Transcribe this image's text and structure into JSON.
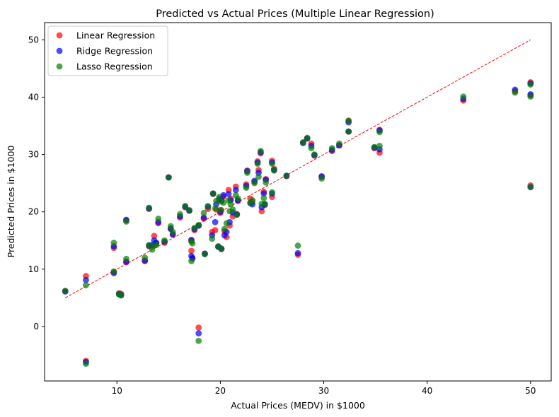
{
  "chart_data": {
    "type": "scatter",
    "title": "Predicted vs Actual Prices (Multiple Linear Regression)",
    "xlabel": "Actual Prices (MEDV) in $1000",
    "ylabel": "Predicted Prices in $1000",
    "xlim": [
      3.0,
      52.0
    ],
    "ylim": [
      -9.5,
      53.0
    ],
    "xticks": [
      10,
      20,
      30,
      40,
      50
    ],
    "yticks": [
      0,
      10,
      20,
      30,
      40,
      50
    ],
    "grid": false,
    "legend_position": "top-left",
    "reference_line": {
      "x": [
        5,
        50
      ],
      "y": [
        5,
        50
      ],
      "color": "#ff0000",
      "style": "dashed"
    },
    "series": [
      {
        "name": "Linear Regression",
        "color": "#ff0000",
        "alpha": 0.7,
        "points": [
          [
            5.0,
            6.2
          ],
          [
            7.0,
            8.8
          ],
          [
            7.0,
            -6.0
          ],
          [
            9.7,
            13.7
          ],
          [
            9.7,
            9.5
          ],
          [
            10.2,
            5.8
          ],
          [
            10.4,
            5.7
          ],
          [
            10.9,
            11.2
          ],
          [
            10.9,
            18.5
          ],
          [
            12.7,
            11.4
          ],
          [
            13.1,
            20.5
          ],
          [
            13.1,
            14.0
          ],
          [
            13.4,
            14.0
          ],
          [
            13.6,
            15.8
          ],
          [
            13.8,
            14.5
          ],
          [
            14.0,
            18.0
          ],
          [
            14.6,
            14.6
          ],
          [
            15.0,
            26.0
          ],
          [
            15.2,
            17.0
          ],
          [
            15.4,
            16.0
          ],
          [
            16.1,
            19.0
          ],
          [
            16.6,
            20.8
          ],
          [
            17.0,
            20.2
          ],
          [
            17.2,
            15.0
          ],
          [
            17.2,
            13.2
          ],
          [
            17.3,
            11.9
          ],
          [
            17.5,
            16.8
          ],
          [
            17.9,
            17.6
          ],
          [
            17.9,
            -0.2
          ],
          [
            18.4,
            18.8
          ],
          [
            18.5,
            12.7
          ],
          [
            18.8,
            20.5
          ],
          [
            19.2,
            16.5
          ],
          [
            19.3,
            23.1
          ],
          [
            19.5,
            16.8
          ],
          [
            19.6,
            20.4
          ],
          [
            19.8,
            13.9
          ],
          [
            19.9,
            22.0
          ],
          [
            20.0,
            19.8
          ],
          [
            20.1,
            20.3
          ],
          [
            20.3,
            22.6
          ],
          [
            20.4,
            16.6
          ],
          [
            20.6,
            15.6
          ],
          [
            20.8,
            23.8
          ],
          [
            20.9,
            17.6
          ],
          [
            21.0,
            22.3
          ],
          [
            21.2,
            19.2
          ],
          [
            21.5,
            24.4
          ],
          [
            21.7,
            21.9
          ],
          [
            22.5,
            24.8
          ],
          [
            22.6,
            27.2
          ],
          [
            22.9,
            22.3
          ],
          [
            23.1,
            21.8
          ],
          [
            23.3,
            25.2
          ],
          [
            23.6,
            28.8
          ],
          [
            23.7,
            27.3
          ],
          [
            23.9,
            30.2
          ],
          [
            24.0,
            20.1
          ],
          [
            24.2,
            23.5
          ],
          [
            24.4,
            25.7
          ],
          [
            25.0,
            28.9
          ],
          [
            25.0,
            22.6
          ],
          [
            25.2,
            27.5
          ],
          [
            26.4,
            26.2
          ],
          [
            28.0,
            32.1
          ],
          [
            28.4,
            32.8
          ],
          [
            28.8,
            31.9
          ],
          [
            29.1,
            29.8
          ],
          [
            29.8,
            26.1
          ],
          [
            30.8,
            30.6
          ],
          [
            31.5,
            31.6
          ],
          [
            32.4,
            35.9
          ],
          [
            32.4,
            34.0
          ],
          [
            34.9,
            31.1
          ],
          [
            35.4,
            30.3
          ],
          [
            35.4,
            34.3
          ],
          [
            43.5,
            39.4
          ],
          [
            48.5,
            41.0
          ],
          [
            50.0,
            42.6
          ],
          [
            50.0,
            40.3
          ],
          [
            50.0,
            24.6
          ],
          [
            27.5,
            12.5
          ],
          [
            20.1,
            13.5
          ],
          [
            24.3,
            21.2
          ],
          [
            21.6,
            19.5
          ]
        ]
      },
      {
        "name": "Ridge Regression",
        "color": "#0000ff",
        "alpha": 0.7,
        "points": [
          [
            5.0,
            6.1
          ],
          [
            7.0,
            8.1
          ],
          [
            7.0,
            -6.2
          ],
          [
            9.7,
            14.0
          ],
          [
            9.7,
            9.3
          ],
          [
            10.2,
            5.6
          ],
          [
            10.4,
            5.5
          ],
          [
            10.9,
            11.3
          ],
          [
            10.9,
            18.6
          ],
          [
            12.7,
            11.5
          ],
          [
            13.1,
            20.6
          ],
          [
            13.1,
            14.1
          ],
          [
            13.4,
            14.2
          ],
          [
            13.6,
            15.0
          ],
          [
            13.8,
            14.6
          ],
          [
            14.0,
            18.2
          ],
          [
            14.6,
            14.8
          ],
          [
            15.0,
            26.0
          ],
          [
            15.2,
            17.1
          ],
          [
            15.4,
            16.1
          ],
          [
            16.1,
            19.2
          ],
          [
            16.6,
            20.9
          ],
          [
            17.0,
            20.2
          ],
          [
            17.2,
            15.1
          ],
          [
            17.2,
            12.3
          ],
          [
            17.3,
            11.9
          ],
          [
            17.5,
            17.0
          ],
          [
            17.9,
            17.6
          ],
          [
            17.9,
            -1.2
          ],
          [
            18.4,
            19.0
          ],
          [
            18.5,
            12.7
          ],
          [
            18.8,
            20.9
          ],
          [
            19.2,
            15.9
          ],
          [
            19.3,
            23.2
          ],
          [
            19.5,
            18.2
          ],
          [
            19.6,
            21.3
          ],
          [
            19.8,
            13.9
          ],
          [
            19.9,
            22.3
          ],
          [
            20.0,
            20.0
          ],
          [
            20.1,
            22.0
          ],
          [
            20.3,
            22.9
          ],
          [
            20.4,
            15.9
          ],
          [
            20.6,
            16.5
          ],
          [
            20.8,
            23.1
          ],
          [
            20.9,
            18.2
          ],
          [
            21.0,
            22.0
          ],
          [
            21.2,
            19.9
          ],
          [
            21.5,
            23.8
          ],
          [
            21.7,
            22.0
          ],
          [
            22.5,
            24.5
          ],
          [
            22.6,
            27.1
          ],
          [
            22.9,
            21.5
          ],
          [
            23.1,
            21.3
          ],
          [
            23.3,
            25.4
          ],
          [
            23.6,
            28.6
          ],
          [
            23.7,
            26.8
          ],
          [
            23.9,
            30.4
          ],
          [
            24.0,
            20.8
          ],
          [
            24.2,
            23.2
          ],
          [
            24.4,
            25.6
          ],
          [
            25.0,
            28.6
          ],
          [
            25.0,
            23.2
          ],
          [
            25.2,
            27.3
          ],
          [
            26.4,
            26.3
          ],
          [
            28.0,
            32.0
          ],
          [
            28.4,
            32.8
          ],
          [
            28.8,
            31.5
          ],
          [
            29.1,
            29.9
          ],
          [
            29.8,
            26.2
          ],
          [
            30.8,
            30.8
          ],
          [
            31.5,
            31.6
          ],
          [
            32.4,
            35.6
          ],
          [
            32.4,
            34.0
          ],
          [
            34.9,
            31.2
          ],
          [
            35.4,
            30.9
          ],
          [
            35.4,
            34.2
          ],
          [
            43.5,
            39.7
          ],
          [
            48.5,
            41.3
          ],
          [
            50.0,
            42.4
          ],
          [
            50.0,
            40.5
          ],
          [
            50.0,
            24.3
          ],
          [
            27.5,
            12.8
          ],
          [
            20.1,
            13.6
          ],
          [
            24.3,
            21.3
          ],
          [
            21.6,
            19.6
          ]
        ]
      },
      {
        "name": "Lasso Regression",
        "color": "#008000",
        "alpha": 0.7,
        "points": [
          [
            5.0,
            6.2
          ],
          [
            7.0,
            7.2
          ],
          [
            7.0,
            -6.5
          ],
          [
            9.7,
            14.6
          ],
          [
            9.7,
            9.6
          ],
          [
            10.2,
            5.7
          ],
          [
            10.4,
            5.4
          ],
          [
            10.9,
            11.8
          ],
          [
            10.9,
            18.3
          ],
          [
            12.7,
            12.0
          ],
          [
            13.1,
            20.7
          ],
          [
            13.1,
            14.2
          ],
          [
            13.4,
            13.4
          ],
          [
            13.6,
            14.1
          ],
          [
            13.8,
            14.2
          ],
          [
            14.0,
            18.8
          ],
          [
            14.6,
            15.0
          ],
          [
            15.0,
            26.0
          ],
          [
            15.2,
            17.5
          ],
          [
            15.4,
            16.5
          ],
          [
            16.1,
            19.6
          ],
          [
            16.6,
            21.0
          ],
          [
            17.0,
            20.3
          ],
          [
            17.2,
            14.8
          ],
          [
            17.2,
            11.4
          ],
          [
            17.3,
            14.5
          ],
          [
            17.5,
            17.2
          ],
          [
            17.9,
            17.7
          ],
          [
            17.9,
            -2.5
          ],
          [
            18.4,
            19.8
          ],
          [
            18.5,
            12.6
          ],
          [
            18.8,
            21.0
          ],
          [
            19.2,
            15.3
          ],
          [
            19.3,
            23.2
          ],
          [
            19.5,
            20.6
          ],
          [
            19.6,
            21.9
          ],
          [
            19.8,
            14.0
          ],
          [
            19.9,
            22.6
          ],
          [
            20.0,
            20.3
          ],
          [
            20.1,
            21.8
          ],
          [
            20.3,
            21.6
          ],
          [
            20.4,
            17.0
          ],
          [
            20.6,
            18.0
          ],
          [
            20.8,
            22.0
          ],
          [
            20.9,
            20.1
          ],
          [
            21.0,
            21.3
          ],
          [
            21.2,
            20.4
          ],
          [
            21.5,
            22.9
          ],
          [
            21.7,
            22.3
          ],
          [
            22.5,
            24.2
          ],
          [
            22.6,
            26.8
          ],
          [
            22.9,
            21.6
          ],
          [
            23.1,
            22.0
          ],
          [
            23.3,
            25.0
          ],
          [
            23.6,
            28.4
          ],
          [
            23.7,
            26.1
          ],
          [
            23.9,
            30.6
          ],
          [
            24.0,
            21.4
          ],
          [
            24.2,
            22.4
          ],
          [
            24.4,
            25.1
          ],
          [
            25.0,
            28.4
          ],
          [
            25.0,
            23.4
          ],
          [
            25.2,
            27.2
          ],
          [
            26.4,
            26.3
          ],
          [
            28.0,
            32.1
          ],
          [
            28.4,
            32.9
          ],
          [
            28.8,
            31.1
          ],
          [
            29.1,
            30.0
          ],
          [
            29.8,
            25.8
          ],
          [
            30.8,
            31.1
          ],
          [
            31.5,
            31.9
          ],
          [
            32.4,
            35.9
          ],
          [
            32.4,
            34.0
          ],
          [
            34.9,
            31.3
          ],
          [
            35.4,
            31.5
          ],
          [
            35.4,
            33.9
          ],
          [
            43.5,
            40.1
          ],
          [
            48.5,
            40.8
          ],
          [
            50.0,
            42.2
          ],
          [
            50.0,
            40.1
          ],
          [
            50.0,
            24.3
          ],
          [
            27.5,
            14.1
          ],
          [
            20.1,
            13.5
          ],
          [
            24.3,
            21.4
          ],
          [
            21.6,
            19.5
          ]
        ]
      }
    ]
  }
}
